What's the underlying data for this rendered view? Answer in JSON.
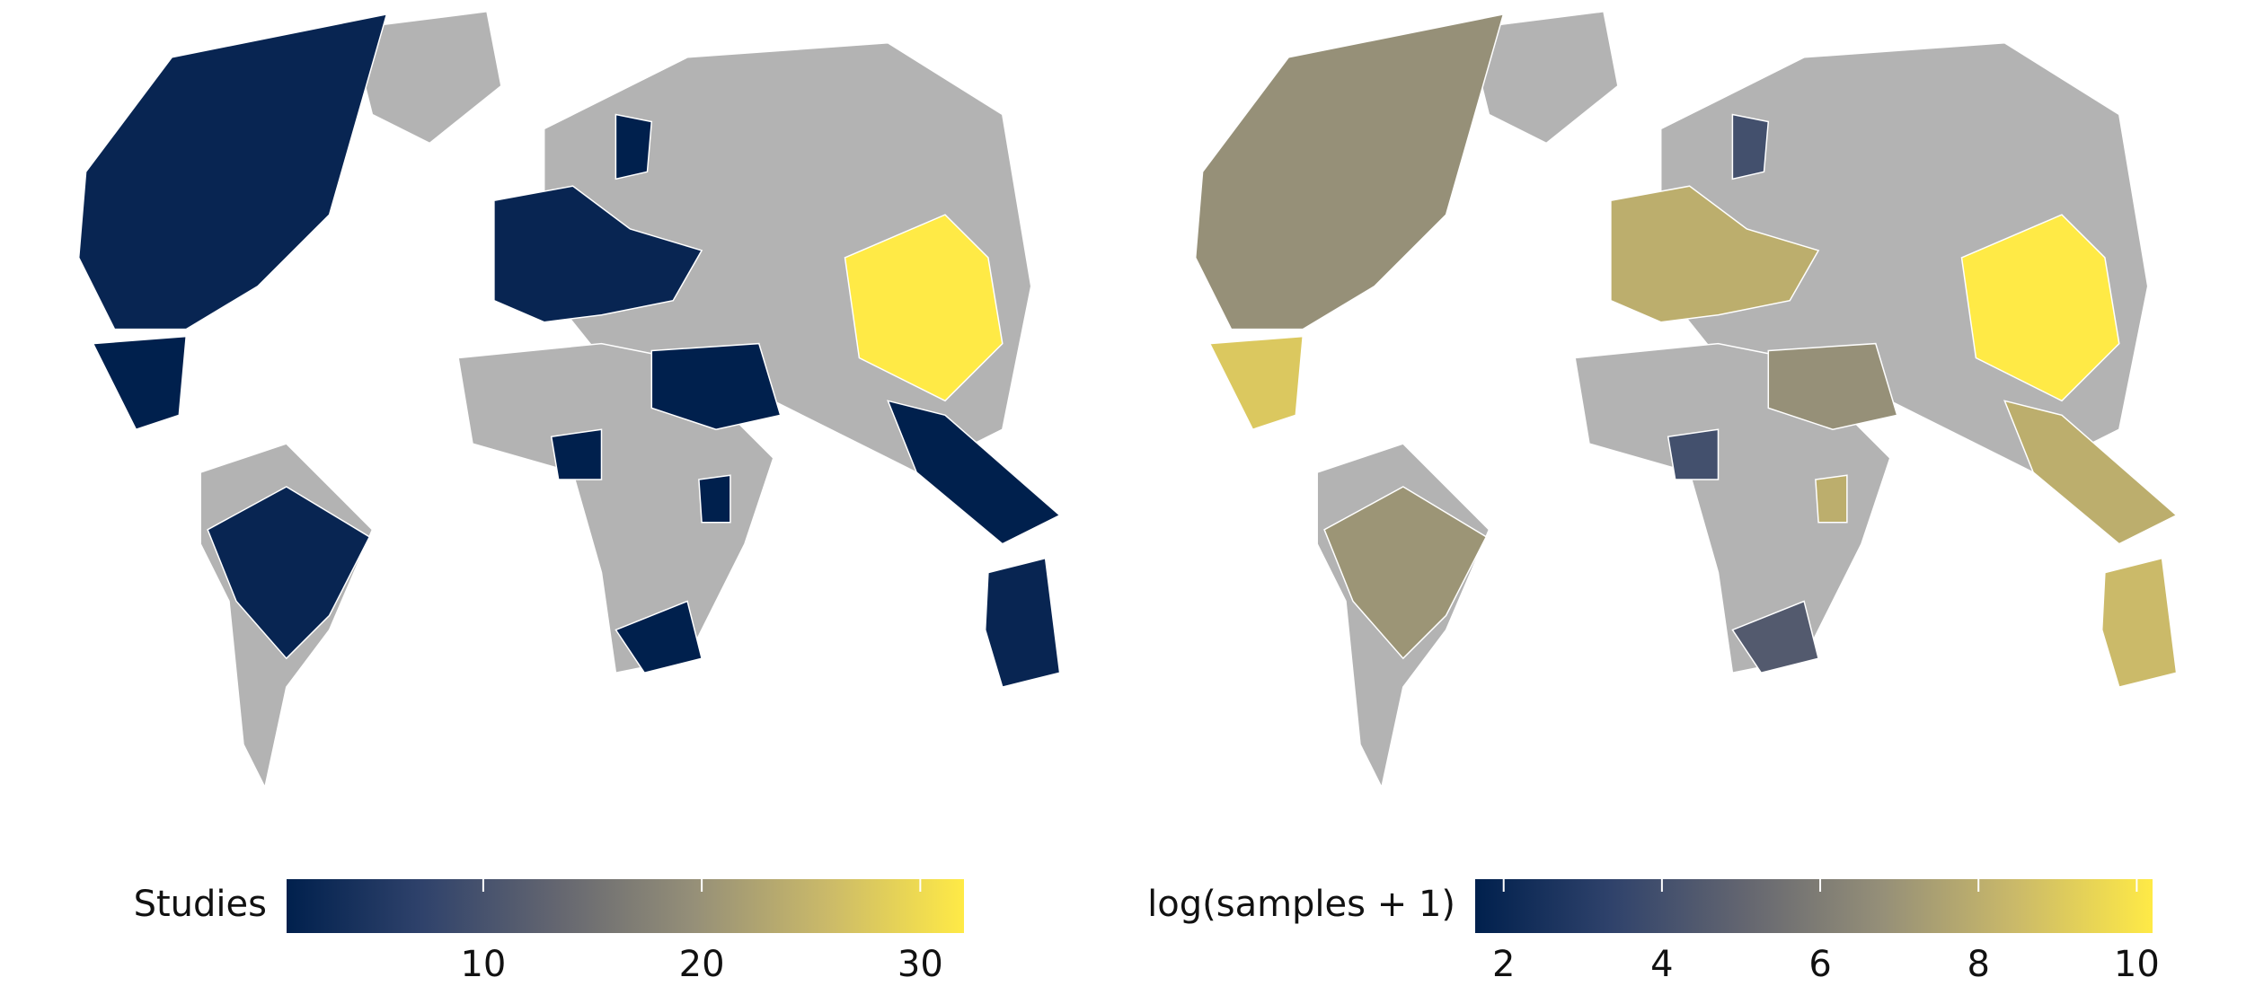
{
  "chart_data": [
    {
      "type": "choropleth",
      "legend_title": "Studies",
      "colormap": [
        "#00204d",
        "#2f426b",
        "#646670",
        "#958f78",
        "#cbba69",
        "#ffea46"
      ],
      "no_data_color": "#b3b3b3",
      "values": [
        2,
        1,
        2,
        2,
        1,
        1,
        32,
        1,
        2,
        1,
        1,
        1
      ],
      "clim": [
        1,
        32
      ],
      "ticks": [
        10,
        20,
        30
      ]
    },
    {
      "type": "choropleth",
      "legend_title": "log(samples + 1)",
      "colormap": [
        "#00204d",
        "#2f426b",
        "#646670",
        "#958f78",
        "#cbba69",
        "#ffea46"
      ],
      "no_data_color": "#b3b3b3",
      "values": [
        6.8,
        9,
        7,
        8,
        4,
        6.8,
        10.2,
        8,
        8.5,
        4.5,
        4,
        8
      ],
      "clim": [
        1.64,
        10.2
      ],
      "ticks": [
        2,
        4,
        6,
        8,
        10
      ]
    }
  ]
}
